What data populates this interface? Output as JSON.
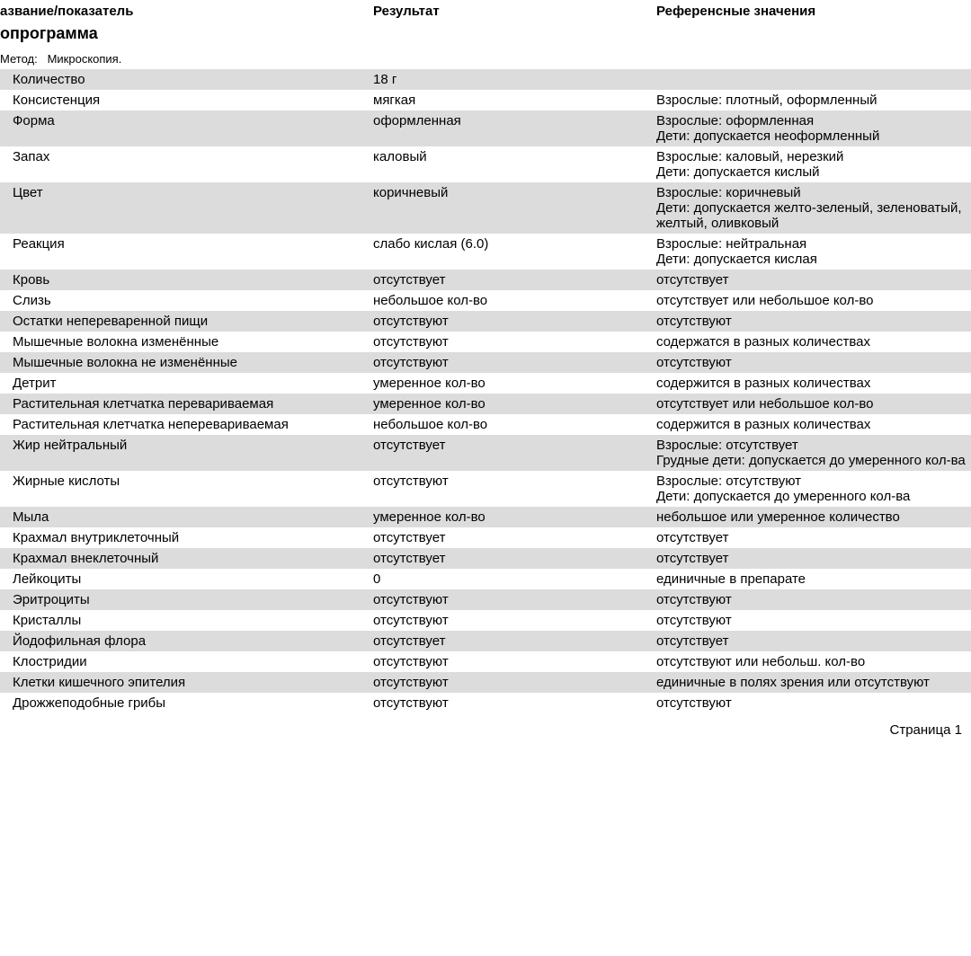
{
  "headers": {
    "name": "азвание/показатель",
    "result": "Результат",
    "reference": "Референсные значения"
  },
  "title": "опрограмма",
  "method_label": "Метод:",
  "method_value": "Микроскопия.",
  "footer": "Страница 1",
  "rows": [
    {
      "name": "Количество",
      "result": "18 г",
      "reference": "",
      "shaded": true
    },
    {
      "name": "Консистенция",
      "result": "мягкая",
      "reference": "Взрослые: плотный, оформленный",
      "shaded": false
    },
    {
      "name": "Форма",
      "result": "оформленная",
      "reference": "Взрослые: оформленная\n Дети: допускается неоформленный",
      "shaded": true
    },
    {
      "name": "Запах",
      "result": "каловый",
      "reference": "Взрослые: каловый, нерезкий\nДети: допускается кислый",
      "shaded": false
    },
    {
      "name": "Цвет",
      "result": "коричневый",
      "reference": "Взрослые: коричневый\nДети: допускается желто-зеленый, зеленоватый, желтый, оливковый",
      "shaded": true
    },
    {
      "name": "Реакция",
      "result": "слабо кислая (6.0)",
      "reference": "Взрослые: нейтральная\nДети: допускается кислая",
      "shaded": false
    },
    {
      "name": "Кровь",
      "result": "отсутствует",
      "reference": "отсутствует",
      "shaded": true
    },
    {
      "name": "Слизь",
      "result": "небольшое кол-во",
      "reference": "отсутствует или небольшое кол-во",
      "shaded": false
    },
    {
      "name": "Остатки непереваренной пищи",
      "result": "отсутствуют",
      "reference": "отсутствуют",
      "shaded": true
    },
    {
      "name": "Мышечные волокна изменённые",
      "result": "отсутствуют",
      "reference": "содержатся в разных количествах",
      "shaded": false
    },
    {
      "name": "Мышечные волокна не изменённые",
      "result": "отсутствуют",
      "reference": "отсутствуют",
      "shaded": true
    },
    {
      "name": "Детрит",
      "result": "умеренное кол-во",
      "reference": "содержится в разных количествах",
      "shaded": false
    },
    {
      "name": "Растительная клетчатка перевариваемая",
      "result": "умеренное кол-во",
      "reference": "отсутствует или небольшое кол-во",
      "shaded": true
    },
    {
      "name": "Растительная клетчатка неперевариваемая",
      "result": "небольшое кол-во",
      "reference": "содержится в разных количествах",
      "shaded": false
    },
    {
      "name": "Жир нейтральный",
      "result": "отсутствует",
      "reference": "Взрослые: отсутствует\nГрудные дети: допускается до умеренного кол-ва",
      "shaded": true
    },
    {
      "name": "Жирные кислоты",
      "result": "отсутствуют",
      "reference": "Взрослые: отсутствуют\n Дети: допускается до умеренного кол-ва",
      "shaded": false
    },
    {
      "name": "Мыла",
      "result": "умеренное кол-во",
      "reference": "небольшое или умеренное количество",
      "shaded": true
    },
    {
      "name": "Крахмал внутриклеточный",
      "result": "отсутствует",
      "reference": "отсутствует",
      "shaded": false
    },
    {
      "name": "Крахмал внеклеточный",
      "result": "отсутствует",
      "reference": "отсутствует",
      "shaded": true
    },
    {
      "name": "Лейкоциты",
      "result": "0",
      "reference": "единичные в препарате",
      "shaded": false
    },
    {
      "name": "Эритроциты",
      "result": "отсутствуют",
      "reference": "отсутствуют",
      "shaded": true
    },
    {
      "name": "Кристаллы",
      "result": "отсутствуют",
      "reference": "отсутствуют",
      "shaded": false
    },
    {
      "name": "Йодофильная флора",
      "result": "отсутствует",
      "reference": "отсутствует",
      "shaded": true
    },
    {
      "name": "Клостридии",
      "result": "отсутствуют",
      "reference": "отсутствуют или небольш. кол-во",
      "shaded": false
    },
    {
      "name": "Клетки кишечного эпителия",
      "result": "отсутствуют",
      "reference": "единичные в полях зрения или отсутствуют",
      "shaded": true
    },
    {
      "name": "Дрожжеподобные грибы",
      "result": "отсутствуют",
      "reference": "отсутствуют",
      "shaded": false
    }
  ]
}
